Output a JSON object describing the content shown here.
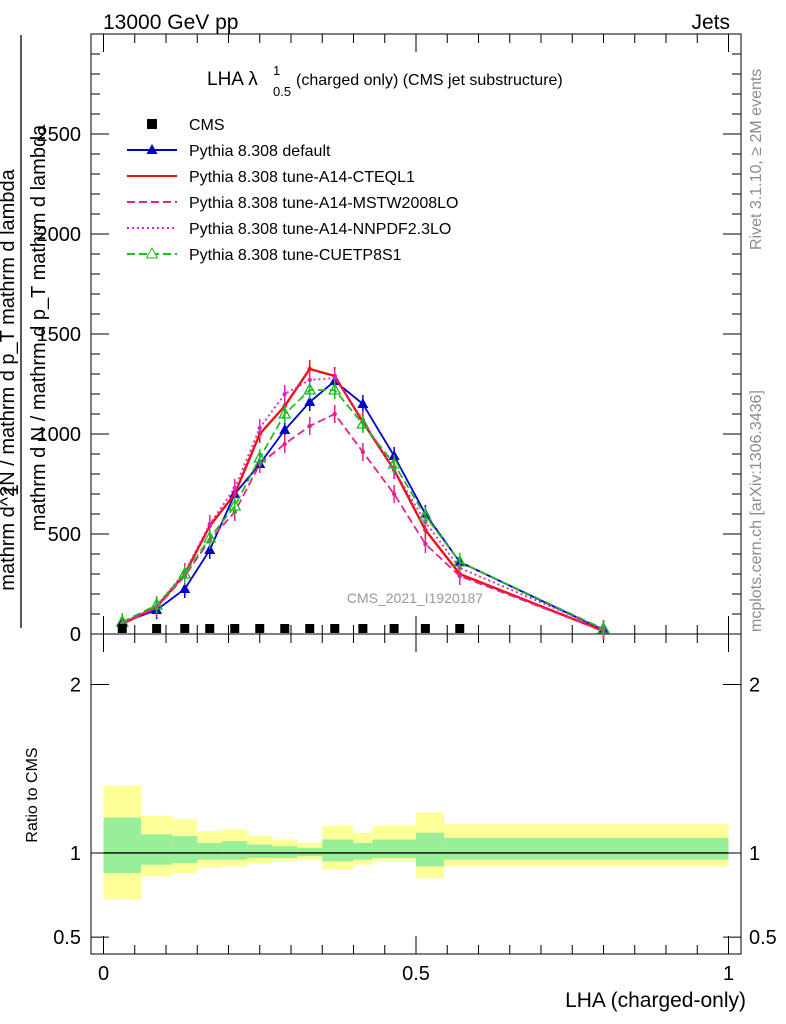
{
  "header": {
    "energy": "13000 GeV pp",
    "category": "Jets",
    "title_main": "LHA λ",
    "title_sup": "1",
    "title_sub": "0.5",
    "title_rest": " (charged only) (CMS jet substructure)",
    "rivet_note": "Rivet 3.1.10, ≥ 2M events",
    "mcplots_note": "mcplots.cern.ch [arXiv:1306.3436]",
    "analysis": "CMS_2021_I1920187"
  },
  "chart_data": [
    {
      "type": "line",
      "panel": "main",
      "xlabel": "LHA (charged-only)",
      "ylabel_num": "1",
      "ylabel_den": "mathrm d N / mathrm d p_T mathrm d lambda",
      "ylabel_deriv": "mathrm d^2N / mathrm d p_T mathrm d lambda",
      "xlim": [
        -0.02,
        1.02
      ],
      "ylim": [
        0,
        3000
      ],
      "yticks": [
        {
          "v": 0,
          "label": "0"
        },
        {
          "v": 500,
          "label": "500"
        },
        {
          "v": 1000,
          "label": "1000"
        },
        {
          "v": 1500,
          "label": "1500"
        },
        {
          "v": 2000,
          "label": "2000"
        },
        {
          "v": 2500,
          "label": "2500"
        }
      ],
      "legend_position": "top-left",
      "data_points": {
        "name": "CMS",
        "x": [
          0.03,
          0.085,
          0.13,
          0.17,
          0.21,
          0.25,
          0.29,
          0.33,
          0.37,
          0.415,
          0.465,
          0.515,
          0.57
        ],
        "y": [
          0,
          0,
          0,
          0,
          0,
          0,
          0,
          0,
          0,
          0,
          0,
          0,
          0
        ]
      },
      "series": [
        {
          "name": "Pythia 8.308 default",
          "color": "#0000cc",
          "style": "solid",
          "marker": "triangle-filled",
          "x": [
            0.03,
            0.085,
            0.13,
            0.17,
            0.21,
            0.25,
            0.29,
            0.33,
            0.37,
            0.415,
            0.465,
            0.515,
            0.57,
            0.8
          ],
          "y": [
            55,
            120,
            225,
            420,
            700,
            850,
            1020,
            1160,
            1265,
            1150,
            890,
            600,
            360,
            20
          ]
        },
        {
          "name": "Pythia 8.308 tune-A14-CTEQL1",
          "color": "#ee1111",
          "style": "solid",
          "marker": "none",
          "x": [
            0.03,
            0.085,
            0.13,
            0.17,
            0.21,
            0.25,
            0.29,
            0.33,
            0.37,
            0.415,
            0.465,
            0.515,
            0.57,
            0.8
          ],
          "y": [
            50,
            135,
            300,
            540,
            700,
            1000,
            1140,
            1325,
            1290,
            1060,
            820,
            520,
            300,
            15
          ]
        },
        {
          "name": "Pythia 8.308 tune-A14-MSTW2008LO",
          "color": "#e8208c",
          "style": "dashed",
          "marker": "none",
          "x": [
            0.03,
            0.085,
            0.13,
            0.17,
            0.21,
            0.25,
            0.29,
            0.33,
            0.37,
            0.415,
            0.465,
            0.515,
            0.57,
            0.8
          ],
          "y": [
            50,
            130,
            290,
            470,
            610,
            850,
            950,
            1040,
            1100,
            910,
            700,
            450,
            290,
            15
          ]
        },
        {
          "name": "Pythia 8.308 tune-A14-NNPDF2.3LO",
          "color": "#dd22cc",
          "style": "dotted",
          "marker": "none",
          "x": [
            0.03,
            0.085,
            0.13,
            0.17,
            0.21,
            0.25,
            0.29,
            0.33,
            0.37,
            0.415,
            0.465,
            0.515,
            0.57,
            0.8
          ],
          "y": [
            55,
            140,
            310,
            550,
            730,
            1030,
            1200,
            1270,
            1280,
            1070,
            820,
            560,
            330,
            25
          ]
        },
        {
          "name": "Pythia 8.308 tune-CUETP8S1",
          "color": "#22bb22",
          "style": "dashed",
          "marker": "triangle-open",
          "x": [
            0.03,
            0.085,
            0.13,
            0.17,
            0.21,
            0.25,
            0.29,
            0.33,
            0.37,
            0.415,
            0.465,
            0.515,
            0.57,
            0.8
          ],
          "y": [
            60,
            145,
            300,
            480,
            640,
            880,
            1100,
            1220,
            1220,
            1050,
            850,
            590,
            360,
            25
          ]
        }
      ]
    },
    {
      "type": "area",
      "panel": "ratio",
      "xlabel": "LHA (charged-only)",
      "ylabel": "Ratio to CMS",
      "xlim": [
        -0.02,
        1.02
      ],
      "ylim": [
        0.4,
        2.3
      ],
      "yticks": [
        {
          "v": 0.5,
          "label": "0.5"
        },
        {
          "v": 1,
          "label": "1"
        },
        {
          "v": 2,
          "label": "2"
        }
      ],
      "xticks": [
        {
          "v": 0,
          "label": "0"
        },
        {
          "v": 0.5,
          "label": "0.5"
        },
        {
          "v": 1,
          "label": "1"
        }
      ],
      "reference": 1,
      "bins": [
        0,
        0.06,
        0.11,
        0.15,
        0.19,
        0.23,
        0.27,
        0.31,
        0.35,
        0.4,
        0.43,
        0.5,
        0.545,
        1.0
      ],
      "band_outer": {
        "color": "#ffff99",
        "lo": [
          0.72,
          0.86,
          0.88,
          0.91,
          0.92,
          0.94,
          0.95,
          0.96,
          0.9,
          0.93,
          0.95,
          0.85,
          0.92
        ],
        "hi": [
          1.4,
          1.22,
          1.2,
          1.13,
          1.14,
          1.1,
          1.08,
          1.06,
          1.16,
          1.12,
          1.16,
          1.24,
          1.17
        ]
      },
      "band_inner": {
        "color": "#99ee99",
        "lo": [
          0.88,
          0.93,
          0.94,
          0.96,
          0.96,
          0.97,
          0.97,
          0.98,
          0.95,
          0.96,
          0.97,
          0.92,
          0.96
        ],
        "hi": [
          1.21,
          1.11,
          1.1,
          1.06,
          1.07,
          1.05,
          1.04,
          1.03,
          1.08,
          1.06,
          1.08,
          1.12,
          1.09
        ]
      }
    }
  ]
}
